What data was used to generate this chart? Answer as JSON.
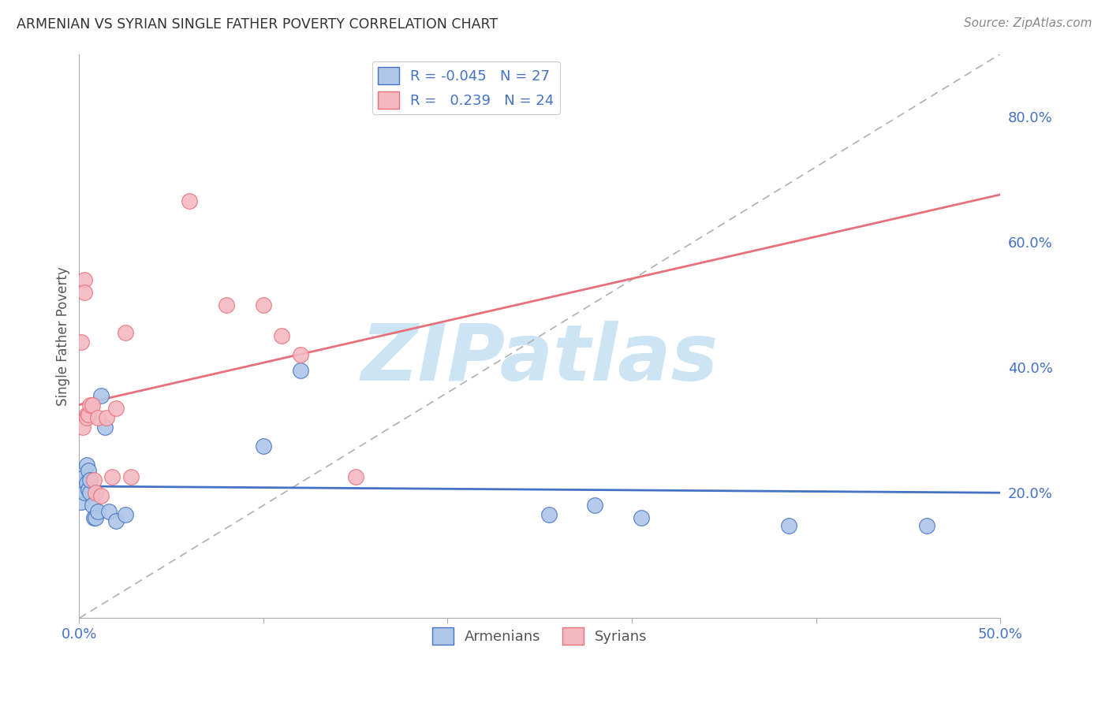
{
  "title": "ARMENIAN VS SYRIAN SINGLE FATHER POVERTY CORRELATION CHART",
  "source": "Source: ZipAtlas.com",
  "ylabel": "Single Father Poverty",
  "right_yticks": [
    "20.0%",
    "40.0%",
    "60.0%",
    "80.0%"
  ],
  "right_ytick_vals": [
    0.2,
    0.4,
    0.6,
    0.8
  ],
  "armenian_R": "-0.045",
  "armenian_N": "27",
  "syrian_R": "0.239",
  "syrian_N": "24",
  "armenian_color": "#aec6e8",
  "syrian_color": "#f4b8c1",
  "armenian_line_color": "#4472c4",
  "syrian_line_color": "#e8707a",
  "watermark": "ZIPatlas",
  "watermark_color": "#cde4f5",
  "xlim": [
    0.0,
    0.5
  ],
  "ylim": [
    0.0,
    0.9
  ],
  "armenians_x": [
    0.001,
    0.002,
    0.002,
    0.003,
    0.003,
    0.004,
    0.004,
    0.005,
    0.005,
    0.006,
    0.006,
    0.007,
    0.008,
    0.009,
    0.01,
    0.012,
    0.014,
    0.016,
    0.02,
    0.025,
    0.1,
    0.12,
    0.255,
    0.28,
    0.305,
    0.385,
    0.46
  ],
  "armenians_y": [
    0.185,
    0.205,
    0.215,
    0.225,
    0.2,
    0.245,
    0.215,
    0.205,
    0.235,
    0.2,
    0.22,
    0.18,
    0.16,
    0.16,
    0.17,
    0.355,
    0.305,
    0.17,
    0.155,
    0.165,
    0.275,
    0.395,
    0.165,
    0.18,
    0.16,
    0.148,
    0.148
  ],
  "syrians_x": [
    0.001,
    0.002,
    0.003,
    0.003,
    0.004,
    0.004,
    0.005,
    0.006,
    0.007,
    0.008,
    0.009,
    0.01,
    0.012,
    0.015,
    0.018,
    0.02,
    0.025,
    0.028,
    0.06,
    0.08,
    0.1,
    0.11,
    0.12,
    0.15
  ],
  "syrians_y": [
    0.44,
    0.305,
    0.54,
    0.52,
    0.325,
    0.32,
    0.325,
    0.34,
    0.34,
    0.22,
    0.2,
    0.32,
    0.195,
    0.32,
    0.225,
    0.335,
    0.455,
    0.225,
    0.665,
    0.5,
    0.5,
    0.45,
    0.42,
    0.225
  ],
  "background_color": "#ffffff",
  "plot_bg_color": "#ffffff",
  "grid_color": "#cccccc"
}
